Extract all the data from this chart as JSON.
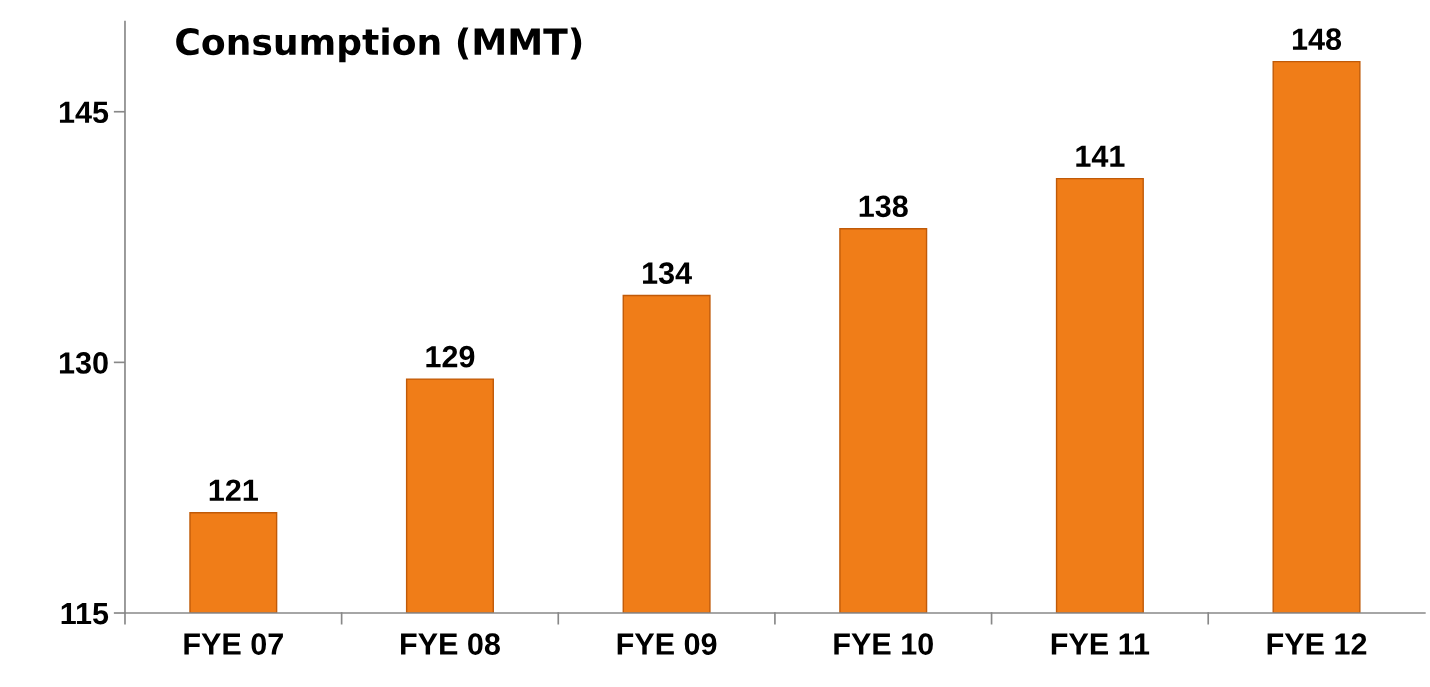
{
  "chart_data": {
    "type": "bar",
    "title": "Consumption (MMT)",
    "categories": [
      "FYE 07",
      "FYE 08",
      "FYE 09",
      "FYE 10",
      "FYE 11",
      "FYE 12"
    ],
    "values": [
      121,
      129,
      134,
      138,
      141,
      148
    ],
    "color": "#f07d18",
    "ylim": [
      115,
      150.4
    ],
    "yticks": [
      115,
      130,
      145
    ],
    "grid": false,
    "data_labels": true
  }
}
